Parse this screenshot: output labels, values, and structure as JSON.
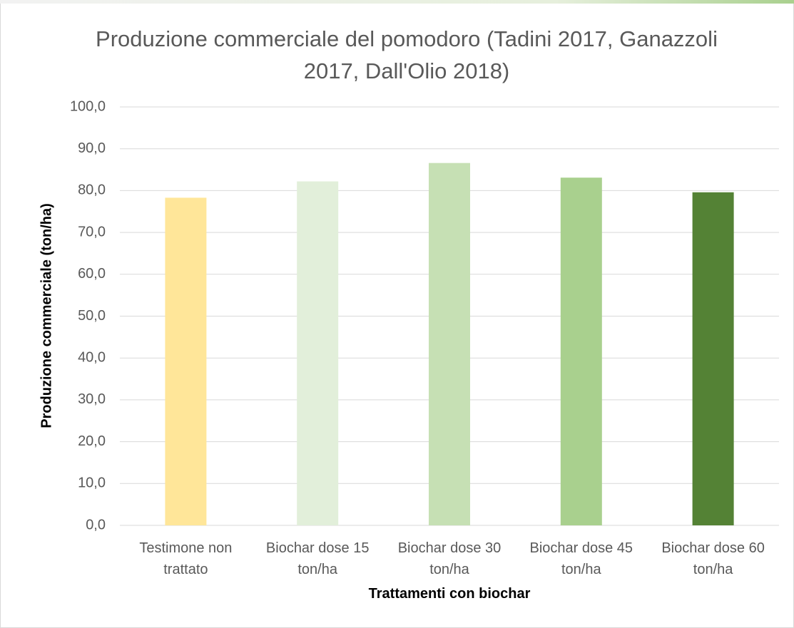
{
  "chart_data": {
    "type": "bar",
    "title": "Produzione commerciale del pomodoro (Tadini 2017, Ganazzoli 2017, Dall'Olio 2018)",
    "x_label": "Trattamenti con biochar",
    "y_label": "Produzione commerciale (ton/ha)",
    "categories": [
      "Testimone non trattato",
      "Biochar dose 15 ton/ha",
      "Biochar dose 30 ton/ha",
      "Biochar dose 45 ton/ha",
      "Biochar dose 60 ton/ha"
    ],
    "values": [
      78.3,
      82.2,
      86.6,
      83.1,
      79.6
    ],
    "colors": [
      "#ffe699",
      "#e2efda",
      "#c6e0b4",
      "#a9d08e",
      "#548235"
    ],
    "ylim": [
      0,
      100
    ],
    "yticks": [
      {
        "value": 0,
        "label": "0,0"
      },
      {
        "value": 10,
        "label": "10,0"
      },
      {
        "value": 20,
        "label": "20,0"
      },
      {
        "value": 30,
        "label": "30,0"
      },
      {
        "value": 40,
        "label": "40,0"
      },
      {
        "value": 50,
        "label": "50,0"
      },
      {
        "value": 60,
        "label": "60,0"
      },
      {
        "value": 70,
        "label": "70,0"
      },
      {
        "value": 80,
        "label": "80,0"
      },
      {
        "value": 90,
        "label": "90,0"
      },
      {
        "value": 100,
        "label": "100,0"
      }
    ],
    "grid": true
  }
}
